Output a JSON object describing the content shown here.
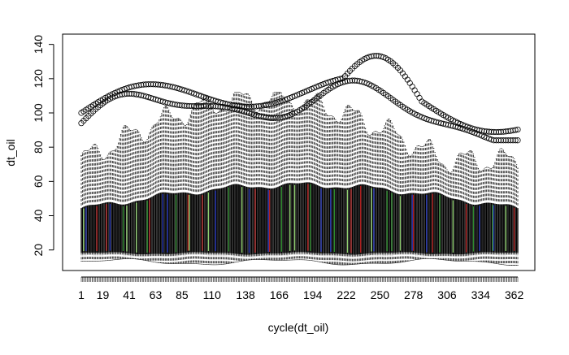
{
  "chart_data": {
    "type": "boxplot",
    "title": "",
    "xlabel": "cycle(dt_oil)",
    "ylabel": "dt_oil",
    "x_tick_labels": [
      "1",
      "19",
      "41",
      "63",
      "85",
      "110",
      "138",
      "166",
      "194",
      "222",
      "250",
      "278",
      "306",
      "334",
      "362"
    ],
    "x_tick_positions": [
      1,
      19,
      41,
      63,
      85,
      110,
      138,
      166,
      194,
      222,
      250,
      278,
      306,
      334,
      362
    ],
    "n_boxes": 365,
    "y_ticks": [
      20,
      40,
      60,
      80,
      100,
      120,
      140
    ],
    "ylim": [
      8,
      146
    ],
    "colors": {
      "box_fill": "#000000",
      "highlight_lines": [
        "#2e8b2e",
        "#1f2fb0",
        "#b01f1f",
        "#8fcf6f"
      ],
      "outlier": "#000000"
    },
    "approx_stats": {
      "median_range": [
        40,
        56
      ],
      "q1_range": [
        17,
        19
      ],
      "upper_whisker_range": [
        60,
        112
      ],
      "lower_whisker_range": [
        11,
        16
      ],
      "outlier_range": [
        84,
        144
      ]
    }
  }
}
